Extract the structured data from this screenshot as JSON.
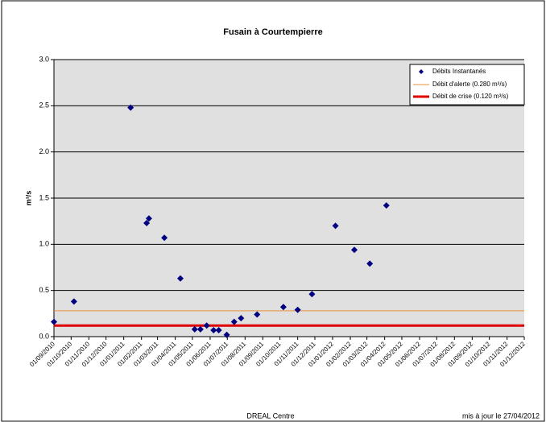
{
  "chart_data": {
    "type": "scatter",
    "title": "Fusain à Courtempierre",
    "y_label": "m³/s",
    "footer_left": "DREAL Centre",
    "footer_right": "mis à jour le 27/04/2012",
    "series": [
      {
        "name": "Débits Instantanés",
        "color": "#000080",
        "x": [
          "01/09/2010",
          "06/10/2010",
          "13/01/2011",
          "10/02/2011",
          "14/02/2011",
          "13/03/2011",
          "10/04/2011",
          "05/05/2011",
          "15/05/2011",
          "26/05/2011",
          "07/06/2011",
          "16/06/2011",
          "30/06/2011",
          "13/07/2011",
          "25/07/2011",
          "22/08/2011",
          "07/10/2011",
          "01/11/2011",
          "26/11/2011",
          "06/01/2012",
          "08/02/2012",
          "06/03/2012",
          "04/04/2012"
        ],
        "values": [
          0.16,
          0.38,
          2.48,
          1.23,
          1.28,
          1.07,
          0.63,
          0.08,
          0.08,
          0.12,
          0.07,
          0.07,
          0.02,
          0.16,
          0.2,
          0.24,
          0.32,
          0.29,
          0.46,
          1.2,
          0.94,
          0.79,
          1.42
        ]
      }
    ],
    "reference_lines": [
      {
        "name": "Débit d'alerte (0.280 m³/s)",
        "value": 0.28,
        "color": "#e69138",
        "width": 1
      },
      {
        "name": "Débit de crise (0.120 m³/s)",
        "value": 0.12,
        "color": "#e00000",
        "width": 3
      }
    ],
    "xlim": [
      "01/09/2010",
      "01/12/2012"
    ],
    "xticks": [
      "01/09/2010",
      "01/10/2010",
      "01/11/2010",
      "01/12/2010",
      "01/01/2011",
      "01/02/2011",
      "01/03/2011",
      "01/04/2011",
      "01/05/2011",
      "01/06/2011",
      "01/07/2011",
      "01/08/2011",
      "01/09/2011",
      "01/10/2011",
      "01/11/2011",
      "01/12/2011",
      "01/01/2012",
      "01/02/2012",
      "01/03/2012",
      "01/04/2012",
      "01/05/2012",
      "01/06/2012",
      "01/07/2012",
      "01/08/2012",
      "01/09/2012",
      "01/10/2012",
      "01/11/2012",
      "01/12/2012"
    ],
    "ylim": [
      0,
      3
    ],
    "yticks": [
      {
        "value": 0,
        "label": "0.0"
      },
      {
        "value": 0.5,
        "label": "0.5"
      },
      {
        "value": 1,
        "label": "1.0"
      },
      {
        "value": 1.5,
        "label": "1.5"
      },
      {
        "value": 2,
        "label": "2.0"
      },
      {
        "value": 2.5,
        "label": "2.5"
      },
      {
        "value": 3,
        "label": "3.0"
      }
    ],
    "grid": true,
    "legend": "top-right"
  }
}
